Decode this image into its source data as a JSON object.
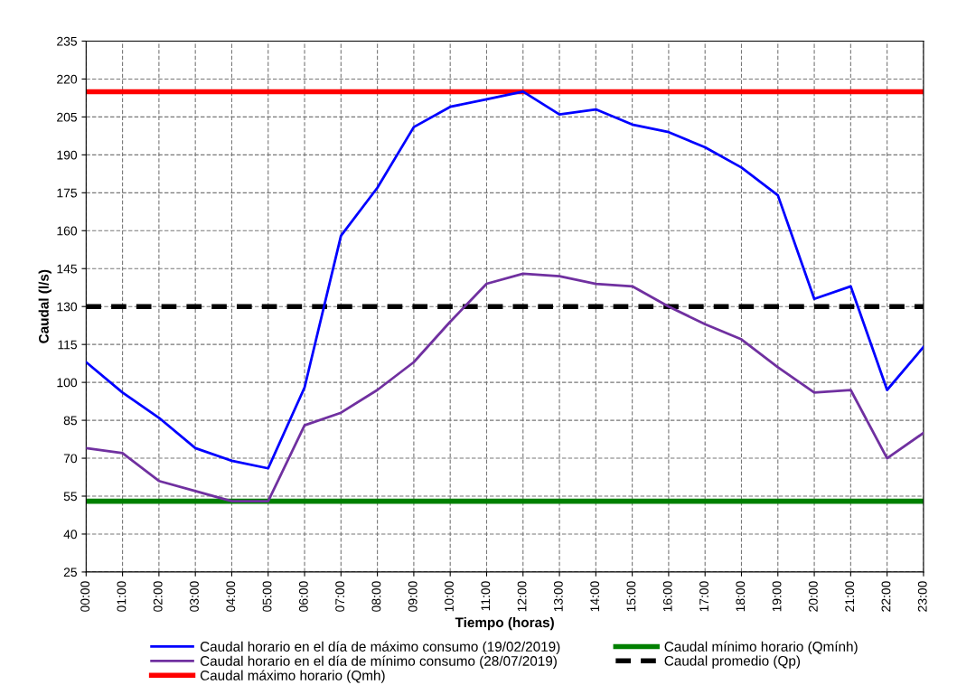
{
  "chart_data": {
    "type": "line",
    "xlabel": "Tiempo (horas)",
    "ylabel": "Caudal (l/s)",
    "x": [
      0,
      1,
      2,
      3,
      4,
      5,
      6,
      7,
      8,
      9,
      10,
      11,
      12,
      13,
      14,
      15,
      16,
      17,
      18,
      19,
      20,
      21,
      22,
      23
    ],
    "series": [
      {
        "name": "Caudal horario en el día de máximo consumo (19/02/2019)",
        "color": "#0000ff",
        "values": [
          108,
          96,
          86,
          74,
          69,
          66,
          98,
          158,
          177,
          201,
          209,
          212,
          215,
          206,
          208,
          202,
          199,
          193,
          185,
          174,
          133,
          138,
          97,
          114
        ]
      },
      {
        "name": "Caudal horario en el día de mínimo consumo (28/07/2019)",
        "color": "#7030a0",
        "values": [
          74,
          72,
          61,
          57,
          53,
          53,
          83,
          88,
          97,
          108,
          124,
          139,
          143,
          142,
          139,
          138,
          130,
          123,
          117,
          106,
          96,
          97,
          70,
          80
        ]
      }
    ],
    "ref_lines": [
      {
        "axis": "y",
        "value": 215,
        "label": "Caudal máximo horario (Qmh)",
        "color": "#ff0000",
        "line_style": "solid"
      },
      {
        "axis": "y",
        "value": 53,
        "label": "Caudal mínimo horario (Qmính)",
        "color": "#008000",
        "line_style": "solid"
      },
      {
        "axis": "y",
        "value": 130,
        "label": "Caudal promedio (Qp)",
        "color": "#000000",
        "line_style": "dashed"
      }
    ],
    "xlim": [
      0,
      23
    ],
    "xticks": [
      {
        "value": 0,
        "label": "00:00"
      },
      {
        "value": 1,
        "label": "01:00"
      },
      {
        "value": 2,
        "label": "02:00"
      },
      {
        "value": 3,
        "label": "03:00"
      },
      {
        "value": 4,
        "label": "04:00"
      },
      {
        "value": 5,
        "label": "05:00"
      },
      {
        "value": 6,
        "label": "06:00"
      },
      {
        "value": 7,
        "label": "07:00"
      },
      {
        "value": 8,
        "label": "08:00"
      },
      {
        "value": 9,
        "label": "09:00"
      },
      {
        "value": 10,
        "label": "10:00"
      },
      {
        "value": 11,
        "label": "11:00"
      },
      {
        "value": 12,
        "label": "12:00"
      },
      {
        "value": 13,
        "label": "13:00"
      },
      {
        "value": 14,
        "label": "14:00"
      },
      {
        "value": 15,
        "label": "15:00"
      },
      {
        "value": 16,
        "label": "16:00"
      },
      {
        "value": 17,
        "label": "17:00"
      },
      {
        "value": 18,
        "label": "18:00"
      },
      {
        "value": 19,
        "label": "19:00"
      },
      {
        "value": 20,
        "label": "20:00"
      },
      {
        "value": 21,
        "label": "21:00"
      },
      {
        "value": 22,
        "label": "22:00"
      },
      {
        "value": 23,
        "label": "23:00"
      }
    ],
    "ylim": [
      25,
      235
    ],
    "yticks": [
      25,
      40,
      55,
      70,
      85,
      100,
      115,
      130,
      145,
      160,
      175,
      190,
      205,
      220,
      235
    ],
    "grid": true,
    "legend": "bottom",
    "marker": "none",
    "line_style": "solid"
  }
}
